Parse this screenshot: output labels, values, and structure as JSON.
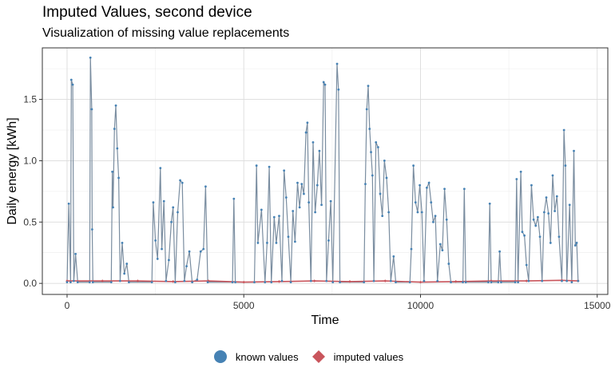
{
  "chart_data": {
    "type": "line",
    "title": "Imputed Values, second device",
    "subtitle": "Visualization of missing value replacements",
    "xlabel": "Time",
    "ylabel": "Daily energy [kWh]",
    "xlim": [
      -700,
      15300
    ],
    "ylim": [
      -0.09,
      1.92
    ],
    "x_ticks": [
      0,
      5000,
      10000,
      15000
    ],
    "x_tick_labels": [
      "0",
      "5000",
      "10000",
      "15000"
    ],
    "y_ticks": [
      0.0,
      0.5,
      1.0,
      1.5
    ],
    "y_tick_labels": [
      "0.0",
      "0.5",
      "1.0",
      "1.5"
    ],
    "grid": true,
    "legend_position": "bottom",
    "colors": {
      "known": "#4682b4",
      "imputed": "#c9555c",
      "line": "#7a8da0"
    },
    "series": [
      {
        "name": "known values",
        "values": [
          [
            0,
            0.01
          ],
          [
            50,
            0.65
          ],
          [
            100,
            0.01
          ],
          [
            120,
            1.66
          ],
          [
            160,
            1.62
          ],
          [
            190,
            0.02
          ],
          [
            240,
            0.24
          ],
          [
            300,
            0.01
          ],
          [
            640,
            0.01
          ],
          [
            660,
            1.84
          ],
          [
            700,
            1.42
          ],
          [
            710,
            0.44
          ],
          [
            730,
            0.01
          ],
          [
            1250,
            0.01
          ],
          [
            1280,
            0.91
          ],
          [
            1300,
            0.62
          ],
          [
            1340,
            1.26
          ],
          [
            1380,
            1.45
          ],
          [
            1420,
            1.1
          ],
          [
            1460,
            0.86
          ],
          [
            1500,
            0.02
          ],
          [
            1560,
            0.33
          ],
          [
            1620,
            0.08
          ],
          [
            1690,
            0.16
          ],
          [
            1750,
            0.01
          ],
          [
            2400,
            0.01
          ],
          [
            2440,
            0.66
          ],
          [
            2500,
            0.35
          ],
          [
            2560,
            0.2
          ],
          [
            2640,
            0.94
          ],
          [
            2680,
            0.28
          ],
          [
            2740,
            0.67
          ],
          [
            2800,
            0.02
          ],
          [
            2880,
            0.19
          ],
          [
            2950,
            0.5
          ],
          [
            3000,
            0.62
          ],
          [
            3060,
            0.01
          ],
          [
            3130,
            0.58
          ],
          [
            3200,
            0.84
          ],
          [
            3260,
            0.82
          ],
          [
            3320,
            0.02
          ],
          [
            3380,
            0.14
          ],
          [
            3460,
            0.26
          ],
          [
            3540,
            0.01
          ],
          [
            3680,
            0.03
          ],
          [
            3780,
            0.26
          ],
          [
            3860,
            0.28
          ],
          [
            3920,
            0.79
          ],
          [
            3980,
            0.01
          ],
          [
            4680,
            0.01
          ],
          [
            4720,
            0.69
          ],
          [
            4760,
            0.01
          ],
          [
            5300,
            0.01
          ],
          [
            5360,
            0.96
          ],
          [
            5400,
            0.33
          ],
          [
            5500,
            0.6
          ],
          [
            5600,
            0.01
          ],
          [
            5660,
            0.33
          ],
          [
            5720,
            0.95
          ],
          [
            5780,
            0.01
          ],
          [
            5860,
            0.54
          ],
          [
            5920,
            0.33
          ],
          [
            6000,
            0.55
          ],
          [
            6080,
            0.02
          ],
          [
            6140,
            0.92
          ],
          [
            6200,
            0.7
          ],
          [
            6260,
            0.38
          ],
          [
            6330,
            0.01
          ],
          [
            6390,
            0.59
          ],
          [
            6450,
            0.34
          ],
          [
            6520,
            0.82
          ],
          [
            6580,
            0.62
          ],
          [
            6640,
            0.81
          ],
          [
            6700,
            0.73
          ],
          [
            6760,
            1.23
          ],
          [
            6800,
            1.31
          ],
          [
            6840,
            0.66
          ],
          [
            6900,
            0.02
          ],
          [
            6960,
            1.15
          ],
          [
            7020,
            0.58
          ],
          [
            7080,
            0.8
          ],
          [
            7140,
            1.08
          ],
          [
            7200,
            0.64
          ],
          [
            7260,
            1.64
          ],
          [
            7300,
            1.62
          ],
          [
            7340,
            0.02
          ],
          [
            7400,
            0.35
          ],
          [
            7460,
            0.67
          ],
          [
            7520,
            0.01
          ],
          [
            7640,
            1.79
          ],
          [
            7680,
            1.58
          ],
          [
            7720,
            0.01
          ],
          [
            8400,
            0.01
          ],
          [
            8440,
            0.81
          ],
          [
            8480,
            1.42
          ],
          [
            8520,
            1.61
          ],
          [
            8560,
            1.26
          ],
          [
            8600,
            1.07
          ],
          [
            8640,
            0.88
          ],
          [
            8680,
            0.02
          ],
          [
            8740,
            1.15
          ],
          [
            8800,
            1.11
          ],
          [
            8860,
            0.73
          ],
          [
            8920,
            0.55
          ],
          [
            8980,
            1.0
          ],
          [
            9040,
            0.86
          ],
          [
            9100,
            0.58
          ],
          [
            9160,
            0.02
          ],
          [
            9240,
            0.22
          ],
          [
            9300,
            0.01
          ],
          [
            9700,
            0.01
          ],
          [
            9740,
            0.28
          ],
          [
            9800,
            0.96
          ],
          [
            9860,
            0.66
          ],
          [
            9920,
            0.58
          ],
          [
            9980,
            0.8
          ],
          [
            10040,
            0.58
          ],
          [
            10100,
            0.02
          ],
          [
            10180,
            0.78
          ],
          [
            10240,
            0.82
          ],
          [
            10300,
            0.66
          ],
          [
            10360,
            0.5
          ],
          [
            10420,
            0.55
          ],
          [
            10480,
            0.02
          ],
          [
            10560,
            0.32
          ],
          [
            10620,
            0.27
          ],
          [
            10680,
            0.77
          ],
          [
            10740,
            0.52
          ],
          [
            10800,
            0.16
          ],
          [
            10860,
            0.01
          ],
          [
            11200,
            0.01
          ],
          [
            11240,
            0.77
          ],
          [
            11280,
            0.01
          ],
          [
            11920,
            0.01
          ],
          [
            11960,
            0.65
          ],
          [
            12000,
            0.01
          ],
          [
            12200,
            0.01
          ],
          [
            12240,
            0.26
          ],
          [
            12280,
            0.01
          ],
          [
            12680,
            0.01
          ],
          [
            12720,
            0.85
          ],
          [
            12760,
            0.01
          ],
          [
            12840,
            0.91
          ],
          [
            12880,
            0.42
          ],
          [
            12940,
            0.39
          ],
          [
            13000,
            0.15
          ],
          [
            13060,
            0.02
          ],
          [
            13140,
            0.8
          ],
          [
            13200,
            0.52
          ],
          [
            13260,
            0.47
          ],
          [
            13320,
            0.54
          ],
          [
            13380,
            0.38
          ],
          [
            13440,
            0.02
          ],
          [
            13500,
            0.58
          ],
          [
            13560,
            0.7
          ],
          [
            13620,
            0.57
          ],
          [
            13680,
            0.33
          ],
          [
            13740,
            0.88
          ],
          [
            13800,
            0.59
          ],
          [
            13860,
            0.71
          ],
          [
            13920,
            0.38
          ],
          [
            14000,
            0.02
          ],
          [
            14060,
            1.25
          ],
          [
            14100,
            0.96
          ],
          [
            14140,
            0.02
          ],
          [
            14220,
            0.64
          ],
          [
            14280,
            0.01
          ],
          [
            14340,
            1.08
          ],
          [
            14380,
            0.31
          ],
          [
            14420,
            0.33
          ],
          [
            14460,
            0.02
          ]
        ]
      },
      {
        "name": "imputed values",
        "values": [
          [
            0,
            0.02
          ],
          [
            1000,
            0.02
          ],
          [
            2000,
            0.02
          ],
          [
            3000,
            0.015
          ],
          [
            4000,
            0.02
          ],
          [
            5000,
            0.01
          ],
          [
            6000,
            0.015
          ],
          [
            7000,
            0.02
          ],
          [
            8000,
            0.015
          ],
          [
            9000,
            0.02
          ],
          [
            10000,
            0.01
          ],
          [
            11000,
            0.015
          ],
          [
            12000,
            0.02
          ],
          [
            13000,
            0.02
          ],
          [
            14000,
            0.025
          ],
          [
            14460,
            0.02
          ]
        ]
      }
    ]
  },
  "legend": {
    "known_label": "known values",
    "imputed_label": "imputed values"
  }
}
